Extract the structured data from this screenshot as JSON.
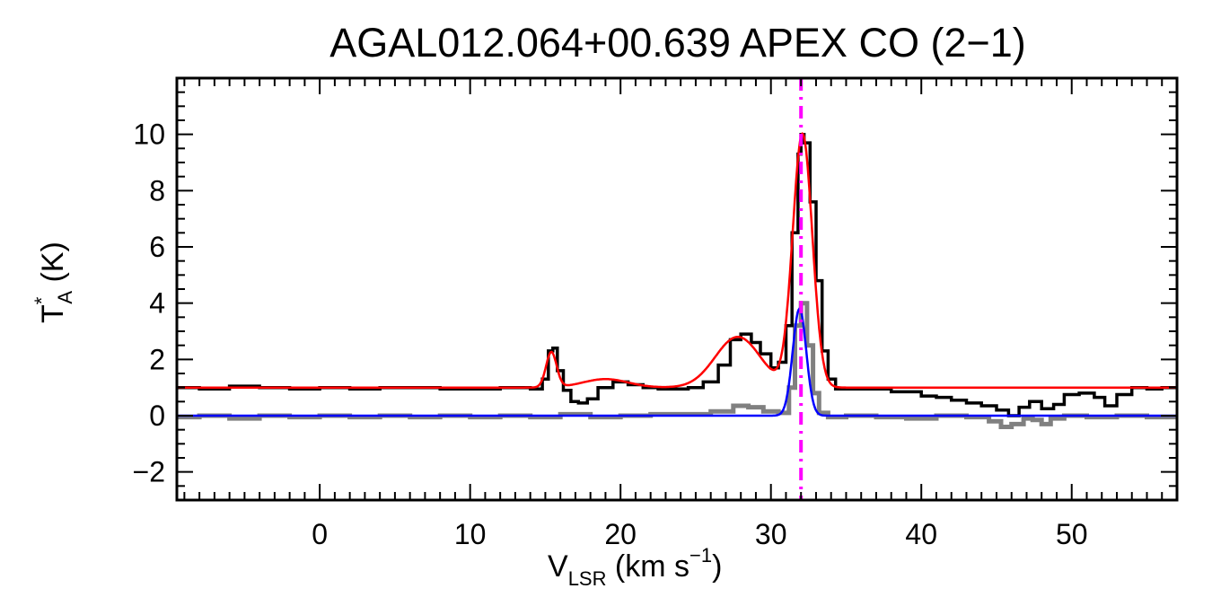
{
  "chart_data": {
    "type": "line",
    "title_source": "AGAL012.064+00.639",
    "title_line": "APEX CO (2−1)",
    "xlabel": {
      "main": "V",
      "sub": "LSR",
      "unit_open": " (km s",
      "sup": "−1",
      "unit_close": ")"
    },
    "ylabel": {
      "main": "T",
      "sup": "*",
      "sub": "A",
      "unit": " (K)"
    },
    "xlim": [
      -9.5,
      57
    ],
    "ylim": [
      -3,
      12
    ],
    "xticks": [
      0,
      10,
      20,
      30,
      40,
      50
    ],
    "xtick_labels": [
      "0",
      "10",
      "20",
      "30",
      "40",
      "50"
    ],
    "yticks": [
      -2,
      0,
      2,
      4,
      6,
      8,
      10
    ],
    "ytick_labels": [
      "−2",
      "0",
      "2",
      "4",
      "6",
      "8",
      "10"
    ],
    "vertical_marker": {
      "x": 32.0,
      "style": "dash-dot"
    },
    "colors": {
      "observed": "#000000",
      "residual": "#808080",
      "fit_total": "#ff0000",
      "fit_component": "#0000ff",
      "marker": "#ff00ff",
      "axes": "#000000"
    },
    "series": [
      {
        "name": "observed spectrum",
        "style": "step",
        "x": [
          -9.5,
          -8.0,
          -6.0,
          -4.0,
          -2.0,
          0.0,
          2.0,
          4.0,
          6.0,
          8.0,
          10.0,
          12.0,
          14.0,
          14.8,
          15.2,
          15.5,
          15.8,
          16.2,
          16.7,
          17.2,
          17.8,
          18.5,
          19.5,
          20.5,
          21.5,
          22.5,
          23.5,
          24.5,
          25.5,
          26.5,
          27.3,
          28.0,
          28.7,
          29.3,
          30.0,
          30.5,
          31.0,
          31.4,
          31.8,
          32.0,
          32.2,
          32.6,
          33.0,
          33.4,
          33.8,
          34.3,
          35.0,
          36.0,
          38.0,
          40.0,
          41.0,
          42.0,
          43.0,
          44.0,
          45.0,
          45.8,
          46.5,
          47.2,
          48.0,
          48.8,
          49.5,
          50.5,
          51.5,
          52.2,
          53.0,
          54.0,
          55.0,
          56.0,
          57.0
        ],
        "y": [
          1.0,
          0.95,
          1.05,
          1.0,
          0.95,
          1.0,
          0.95,
          1.0,
          1.0,
          0.95,
          0.95,
          1.0,
          0.95,
          1.3,
          2.3,
          2.4,
          1.6,
          0.9,
          0.5,
          0.45,
          0.6,
          1.0,
          1.2,
          1.1,
          1.0,
          0.95,
          0.95,
          1.0,
          1.2,
          1.8,
          2.7,
          2.9,
          2.6,
          2.2,
          1.7,
          1.9,
          3.2,
          6.5,
          9.3,
          10.0,
          9.7,
          7.6,
          4.8,
          2.3,
          1.3,
          0.95,
          0.95,
          0.95,
          0.85,
          0.7,
          0.65,
          0.55,
          0.45,
          0.35,
          0.2,
          0.0,
          0.3,
          0.5,
          0.25,
          0.4,
          0.75,
          0.8,
          0.65,
          0.35,
          0.75,
          1.0,
          0.95,
          1.0,
          1.0
        ]
      },
      {
        "name": "residual spectrum",
        "style": "step",
        "x": [
          -9.5,
          -8.0,
          -6.0,
          -4.0,
          -2.0,
          0.0,
          2.0,
          4.0,
          6.0,
          8.0,
          10.0,
          12.0,
          14.0,
          16.0,
          18.0,
          20.0,
          22.0,
          24.0,
          26.0,
          27.5,
          28.5,
          29.5,
          30.5,
          31.2,
          31.6,
          32.0,
          32.4,
          32.8,
          33.2,
          33.8,
          35.0,
          37.0,
          39.0,
          41.0,
          43.0,
          44.5,
          45.3,
          46.0,
          46.8,
          47.4,
          48.0,
          48.6,
          49.5,
          51.0,
          53.0,
          55.0,
          57.0
        ],
        "y": [
          -0.05,
          0.0,
          -0.1,
          0.0,
          -0.05,
          0.0,
          -0.05,
          0.0,
          -0.05,
          0.0,
          -0.05,
          0.0,
          -0.05,
          0.05,
          -0.05,
          0.0,
          0.05,
          0.05,
          0.15,
          0.35,
          0.3,
          0.15,
          0.1,
          1.0,
          3.2,
          4.0,
          2.5,
          0.8,
          0.1,
          -0.05,
          0.0,
          -0.05,
          -0.1,
          0.0,
          -0.05,
          -0.2,
          -0.4,
          -0.3,
          -0.1,
          -0.15,
          -0.3,
          -0.1,
          0.0,
          -0.05,
          0.0,
          -0.05,
          0.0
        ]
      },
      {
        "name": "total fit",
        "style": "line",
        "baseline": 1.0,
        "components": [
          {
            "center": 15.4,
            "amplitude": 1.25,
            "sigma": 0.35
          },
          {
            "center": 19.0,
            "amplitude": 0.3,
            "sigma": 1.5
          },
          {
            "center": 27.8,
            "amplitude": 1.8,
            "sigma": 1.5
          },
          {
            "center": 32.1,
            "amplitude": 9.0,
            "sigma": 0.65
          }
        ]
      },
      {
        "name": "fitted component",
        "style": "line",
        "baseline": 0.0,
        "components": [
          {
            "center": 31.9,
            "amplitude": 3.8,
            "sigma": 0.45
          }
        ]
      }
    ]
  }
}
